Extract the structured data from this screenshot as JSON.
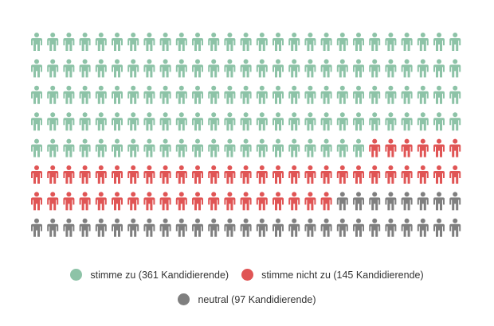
{
  "chart_data": {
    "type": "pictogram",
    "columns": 27,
    "rows": 8,
    "series": [
      {
        "name": "stimme zu",
        "label": "stimme zu (361 Kandidierende)",
        "value": 361,
        "color": "#8dc3a7"
      },
      {
        "name": "stimme nicht zu",
        "label": "stimme nicht zu (145 Kandidierende)",
        "value": 145,
        "color": "#e05555"
      },
      {
        "name": "neutral",
        "label": "neutral (97 Kandidierende)",
        "value": 97,
        "color": "#7f7f7f"
      }
    ],
    "icon": "person-icon",
    "legend_position": "bottom"
  }
}
